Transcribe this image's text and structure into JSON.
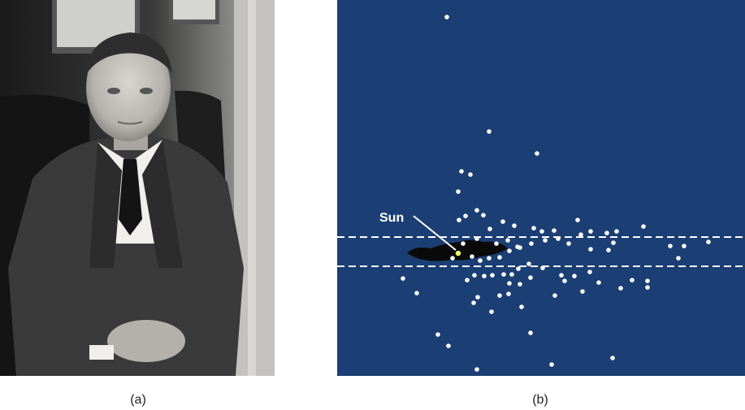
{
  "panel_a": {
    "caption": "(a)",
    "description_icon": "portrait-photo-icon"
  },
  "panel_b": {
    "caption": "(b)",
    "background_color": "#1b3f74",
    "sun_label": "Sun",
    "sun_color": "#f5f56b",
    "cluster_color": "#ffffff"
  }
}
